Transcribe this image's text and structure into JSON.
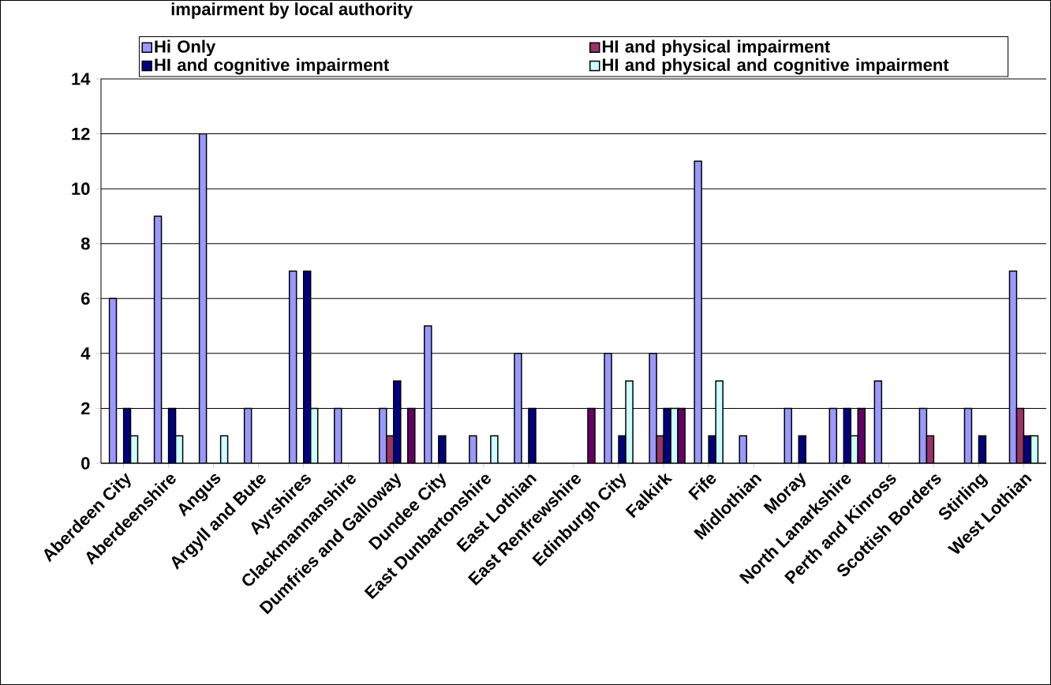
{
  "chart_data": {
    "type": "bar",
    "title": "impairment by local authority",
    "categories": [
      "Aberdeen City",
      "Aberdeenshire",
      "Angus",
      "Argyll and Bute",
      "Ayrshires",
      "Clackmannanshire",
      "Dumfries and Galloway",
      "Dundee City",
      "East Dunbartonshire",
      "East Lothian",
      "East Renfrewshire",
      "Edinburgh City",
      "Falkirk",
      "Fife",
      "Midlothian",
      "Moray",
      "North Lanarkshire",
      "Perth and Kinross",
      "Scottish Borders",
      "Stirling",
      "West Lothian"
    ],
    "series": [
      {
        "name": "Hi Only",
        "color": "#9999ff",
        "values": [
          6,
          9,
          12,
          2,
          7,
          2,
          2,
          5,
          1,
          4,
          0,
          4,
          4,
          11,
          1,
          2,
          2,
          3,
          2,
          2,
          7
        ]
      },
      {
        "name": "HI and physical impairment",
        "color": "#993366",
        "values": [
          0,
          0,
          0,
          0,
          0,
          0,
          1,
          0,
          0,
          0,
          0,
          0,
          1,
          0,
          0,
          0,
          0,
          0,
          1,
          0,
          2
        ]
      },
      {
        "name": "HI and cognitive impairment",
        "color": "#000080",
        "values": [
          2,
          2,
          0,
          0,
          7,
          0,
          3,
          1,
          0,
          2,
          0,
          1,
          2,
          1,
          0,
          1,
          2,
          0,
          0,
          1,
          1
        ]
      },
      {
        "name": "HI and physical and cognitive impairment",
        "color": "#ccffff",
        "values": [
          1,
          1,
          1,
          0,
          2,
          0,
          0,
          0,
          1,
          0,
          0,
          3,
          2,
          3,
          0,
          0,
          1,
          0,
          0,
          0,
          1
        ]
      },
      {
        "color": "#660066",
        "values": [
          0,
          0,
          0,
          0,
          0,
          0,
          2,
          0,
          0,
          0,
          2,
          0,
          2,
          0,
          0,
          0,
          2,
          0,
          0,
          0,
          0
        ]
      }
    ],
    "ylim": [
      0,
      14
    ],
    "yticks": [
      0,
      2,
      4,
      6,
      8,
      10,
      12,
      14
    ],
    "grid": "y",
    "legend": "top"
  }
}
